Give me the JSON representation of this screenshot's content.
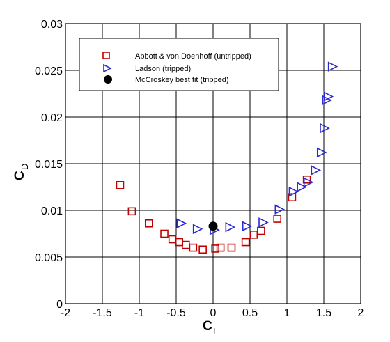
{
  "chart_data": {
    "type": "scatter",
    "xlabel": "C",
    "xlabel_sub": "L",
    "ylabel": "C",
    "ylabel_sub": "D",
    "xlim": [
      -2,
      2
    ],
    "ylim": [
      0,
      0.03
    ],
    "xticks": [
      -2,
      -1.5,
      -1,
      -0.5,
      0,
      0.5,
      1,
      1.5,
      2
    ],
    "yticks": [
      0,
      0.005,
      0.01,
      0.015,
      0.02,
      0.025,
      0.03
    ],
    "xtick_labels": [
      "-2",
      "-1.5",
      "-1",
      "-0.5",
      "0",
      "0.5",
      "1",
      "1.5",
      "2"
    ],
    "ytick_labels": [
      "0",
      "0.005",
      "0.01",
      "0.015",
      "0.02",
      "0.025",
      "0.03"
    ],
    "grid": true,
    "legend_position": "top-left",
    "series": [
      {
        "name": "Abbott & von Doenhoff (untripped)",
        "marker": "square",
        "color": "#c00000",
        "x": [
          -1.26,
          -1.1,
          -0.87,
          -0.66,
          -0.55,
          -0.46,
          -0.37,
          -0.27,
          -0.14,
          0.03,
          0.1,
          0.25,
          0.44,
          0.55,
          0.65,
          0.87,
          1.07,
          1.27
        ],
        "y": [
          0.0127,
          0.0099,
          0.0086,
          0.0075,
          0.0069,
          0.0066,
          0.0063,
          0.006,
          0.0058,
          0.0059,
          0.006,
          0.006,
          0.0066,
          0.0074,
          0.0078,
          0.0091,
          0.0114,
          0.0133
        ]
      },
      {
        "name": "Ladson (tripped)",
        "marker": "triangle-right",
        "color": "#2a2ad0",
        "x": [
          -0.44,
          -0.22,
          0.01,
          0.22,
          0.45,
          0.67,
          0.89,
          1.08,
          1.19,
          1.28,
          1.38,
          1.46,
          1.5,
          1.53,
          1.55,
          1.61
        ],
        "y": [
          0.0086,
          0.008,
          0.0079,
          0.0082,
          0.0083,
          0.0087,
          0.0101,
          0.012,
          0.0125,
          0.013,
          0.0143,
          0.0162,
          0.0188,
          0.0218,
          0.0222,
          0.0254
        ]
      },
      {
        "name": "McCroskey best fit (tripped)",
        "marker": "circle",
        "color": "#000000",
        "x": [
          0.0
        ],
        "y": [
          0.0083
        ]
      }
    ]
  }
}
